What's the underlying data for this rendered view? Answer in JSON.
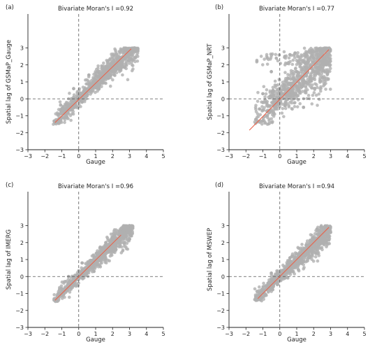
{
  "figure": {
    "point_color": "#b0b0b0",
    "fit_line_color": "#e8644c",
    "ref_line_color": "#555555"
  },
  "chart_data": [
    {
      "type": "scatter",
      "label": "(a)",
      "title": "Bivariate Moran's I =0.92",
      "xlabel": "Gauge",
      "ylabel": "Spatial lag of GSMaP_Gauge",
      "xlim": [
        -3,
        5
      ],
      "ylim": [
        -3,
        5
      ],
      "xticks": [
        -3,
        -2,
        -1,
        0,
        1,
        2,
        3,
        4,
        5
      ],
      "yticks": [
        -3,
        -2,
        -1,
        0,
        1,
        2,
        3
      ],
      "ref_lines": {
        "x": 0,
        "y": 0
      },
      "fit_line": {
        "x": [
          -1.4,
          3.1
        ],
        "y": [
          -1.4,
          2.95
        ]
      },
      "cloud": {
        "x_range": [
          -1.5,
          3.5
        ],
        "slope": 0.95,
        "spread": 0.35
      },
      "points": [
        [
          -1.4,
          -1.3
        ],
        [
          -1.2,
          -0.9
        ],
        [
          -1.0,
          -1.1
        ],
        [
          -0.8,
          -0.6
        ],
        [
          -0.6,
          -0.5
        ],
        [
          -0.4,
          -0.3
        ],
        [
          -0.2,
          0.0
        ],
        [
          0.0,
          0.2
        ],
        [
          0.3,
          0.4
        ],
        [
          0.5,
          0.5
        ],
        [
          0.8,
          0.9
        ],
        [
          1.0,
          1.1
        ],
        [
          1.3,
          1.2
        ],
        [
          1.5,
          1.6
        ],
        [
          1.8,
          1.7
        ],
        [
          2.0,
          2.0
        ],
        [
          2.3,
          2.2
        ],
        [
          2.5,
          2.4
        ],
        [
          2.8,
          2.6
        ],
        [
          3.0,
          2.9
        ],
        [
          3.3,
          2.8
        ],
        [
          -0.3,
          0.6
        ],
        [
          0.2,
          -0.2
        ],
        [
          1.2,
          0.6
        ],
        [
          0.6,
          1.4
        ]
      ]
    },
    {
      "type": "scatter",
      "label": "(b)",
      "title": "Bivariate Moran's I =0.77",
      "xlabel": "Gauge",
      "ylabel": "Spatial lag of GSMaP_NRT",
      "xlim": [
        -3,
        5
      ],
      "ylim": [
        -3,
        5
      ],
      "xticks": [
        -3,
        -2,
        -1,
        0,
        1,
        2,
        3,
        4,
        5
      ],
      "yticks": [
        -3,
        -2,
        -1,
        0,
        1,
        2,
        3
      ],
      "ref_lines": {
        "x": 0,
        "y": 0
      },
      "fit_line": {
        "x": [
          -1.8,
          2.9
        ],
        "y": [
          -1.85,
          2.9
        ]
      },
      "cloud": {
        "x_range": [
          -1.5,
          3.0
        ],
        "slope": 0.9,
        "spread": 0.75
      },
      "points": [
        [
          -1.4,
          -1.2
        ],
        [
          -1.2,
          -0.6
        ],
        [
          -1.0,
          -1.3
        ],
        [
          -0.8,
          -0.2
        ],
        [
          -0.6,
          -0.8
        ],
        [
          -0.4,
          0.5
        ],
        [
          -0.2,
          -0.3
        ],
        [
          0.0,
          0.6
        ],
        [
          0.3,
          -0.4
        ],
        [
          0.5,
          1.2
        ],
        [
          0.8,
          0.3
        ],
        [
          1.0,
          1.6
        ],
        [
          1.3,
          0.7
        ],
        [
          1.5,
          2.1
        ],
        [
          1.8,
          1.2
        ],
        [
          2.0,
          2.4
        ],
        [
          2.3,
          1.5
        ],
        [
          2.5,
          2.6
        ],
        [
          2.8,
          2.2
        ],
        [
          0.3,
          2.5
        ],
        [
          0.6,
          2.6
        ],
        [
          -0.5,
          1.6
        ],
        [
          1.4,
          -0.5
        ],
        [
          -1.0,
          0.3
        ],
        [
          0.9,
          2.7
        ]
      ]
    },
    {
      "type": "scatter",
      "label": "(c)",
      "title": "Bivariate Moran's I =0.96",
      "xlabel": "Gauge",
      "ylabel": "Spatial lag of IMERG",
      "xlim": [
        -3,
        5
      ],
      "ylim": [
        -3,
        5
      ],
      "xticks": [
        -3,
        -2,
        -1,
        0,
        1,
        2,
        3,
        4,
        5
      ],
      "yticks": [
        -3,
        -2,
        -1,
        0,
        1,
        2,
        3
      ],
      "ref_lines": {
        "x": 0,
        "y": 0
      },
      "fit_line": {
        "x": [
          -1.4,
          2.5
        ],
        "y": [
          -1.4,
          2.45
        ]
      },
      "cloud": {
        "x_range": [
          -1.5,
          3.2
        ],
        "slope": 0.95,
        "spread": 0.28
      },
      "points": [
        [
          -1.4,
          -1.3
        ],
        [
          -1.2,
          -1.0
        ],
        [
          -1.0,
          -1.1
        ],
        [
          -0.8,
          -0.7
        ],
        [
          -0.6,
          -0.6
        ],
        [
          -0.4,
          -0.4
        ],
        [
          -0.2,
          -0.1
        ],
        [
          0.0,
          0.1
        ],
        [
          0.3,
          0.3
        ],
        [
          0.5,
          0.5
        ],
        [
          0.8,
          0.8
        ],
        [
          1.0,
          1.0
        ],
        [
          1.3,
          1.2
        ],
        [
          1.5,
          1.5
        ],
        [
          1.8,
          1.7
        ],
        [
          2.0,
          1.9
        ],
        [
          2.3,
          2.2
        ],
        [
          2.5,
          2.4
        ],
        [
          2.8,
          2.4
        ],
        [
          3.0,
          2.2
        ],
        [
          0.2,
          0.8
        ],
        [
          0.9,
          0.3
        ],
        [
          -0.6,
          0.0
        ],
        [
          1.6,
          2.0
        ],
        [
          2.2,
          1.6
        ]
      ]
    },
    {
      "type": "scatter",
      "label": "(d)",
      "title": "Bivariate Moran's I =0.94",
      "xlabel": "Gauge",
      "ylabel": "Spatial lag of MSWEP",
      "xlim": [
        -3,
        5
      ],
      "ylim": [
        -3,
        5
      ],
      "xticks": [
        -3,
        -2,
        -1,
        0,
        1,
        2,
        3,
        4,
        5
      ],
      "yticks": [
        -3,
        -2,
        -1,
        0,
        1,
        2,
        3
      ],
      "ref_lines": {
        "x": 0,
        "y": 0
      },
      "fit_line": {
        "x": [
          -1.3,
          2.9
        ],
        "y": [
          -1.3,
          2.9
        ]
      },
      "cloud": {
        "x_range": [
          -1.5,
          3.0
        ],
        "slope": 0.93,
        "spread": 0.3
      },
      "points": [
        [
          -1.4,
          -1.2
        ],
        [
          -1.2,
          -1.1
        ],
        [
          -1.0,
          -0.9
        ],
        [
          -0.8,
          -0.6
        ],
        [
          -0.6,
          -0.6
        ],
        [
          -0.4,
          -0.3
        ],
        [
          -0.2,
          -0.2
        ],
        [
          0.0,
          0.1
        ],
        [
          0.3,
          0.2
        ],
        [
          0.5,
          0.5
        ],
        [
          0.8,
          0.7
        ],
        [
          1.0,
          0.9
        ],
        [
          1.3,
          1.2
        ],
        [
          1.5,
          1.5
        ],
        [
          1.8,
          1.6
        ],
        [
          2.0,
          1.9
        ],
        [
          2.3,
          2.1
        ],
        [
          2.5,
          2.4
        ],
        [
          2.8,
          2.5
        ],
        [
          3.0,
          2.6
        ],
        [
          0.6,
          1.1
        ],
        [
          1.1,
          0.4
        ],
        [
          -0.5,
          0.2
        ],
        [
          2.2,
          2.8
        ],
        [
          1.7,
          1.1
        ]
      ]
    }
  ]
}
